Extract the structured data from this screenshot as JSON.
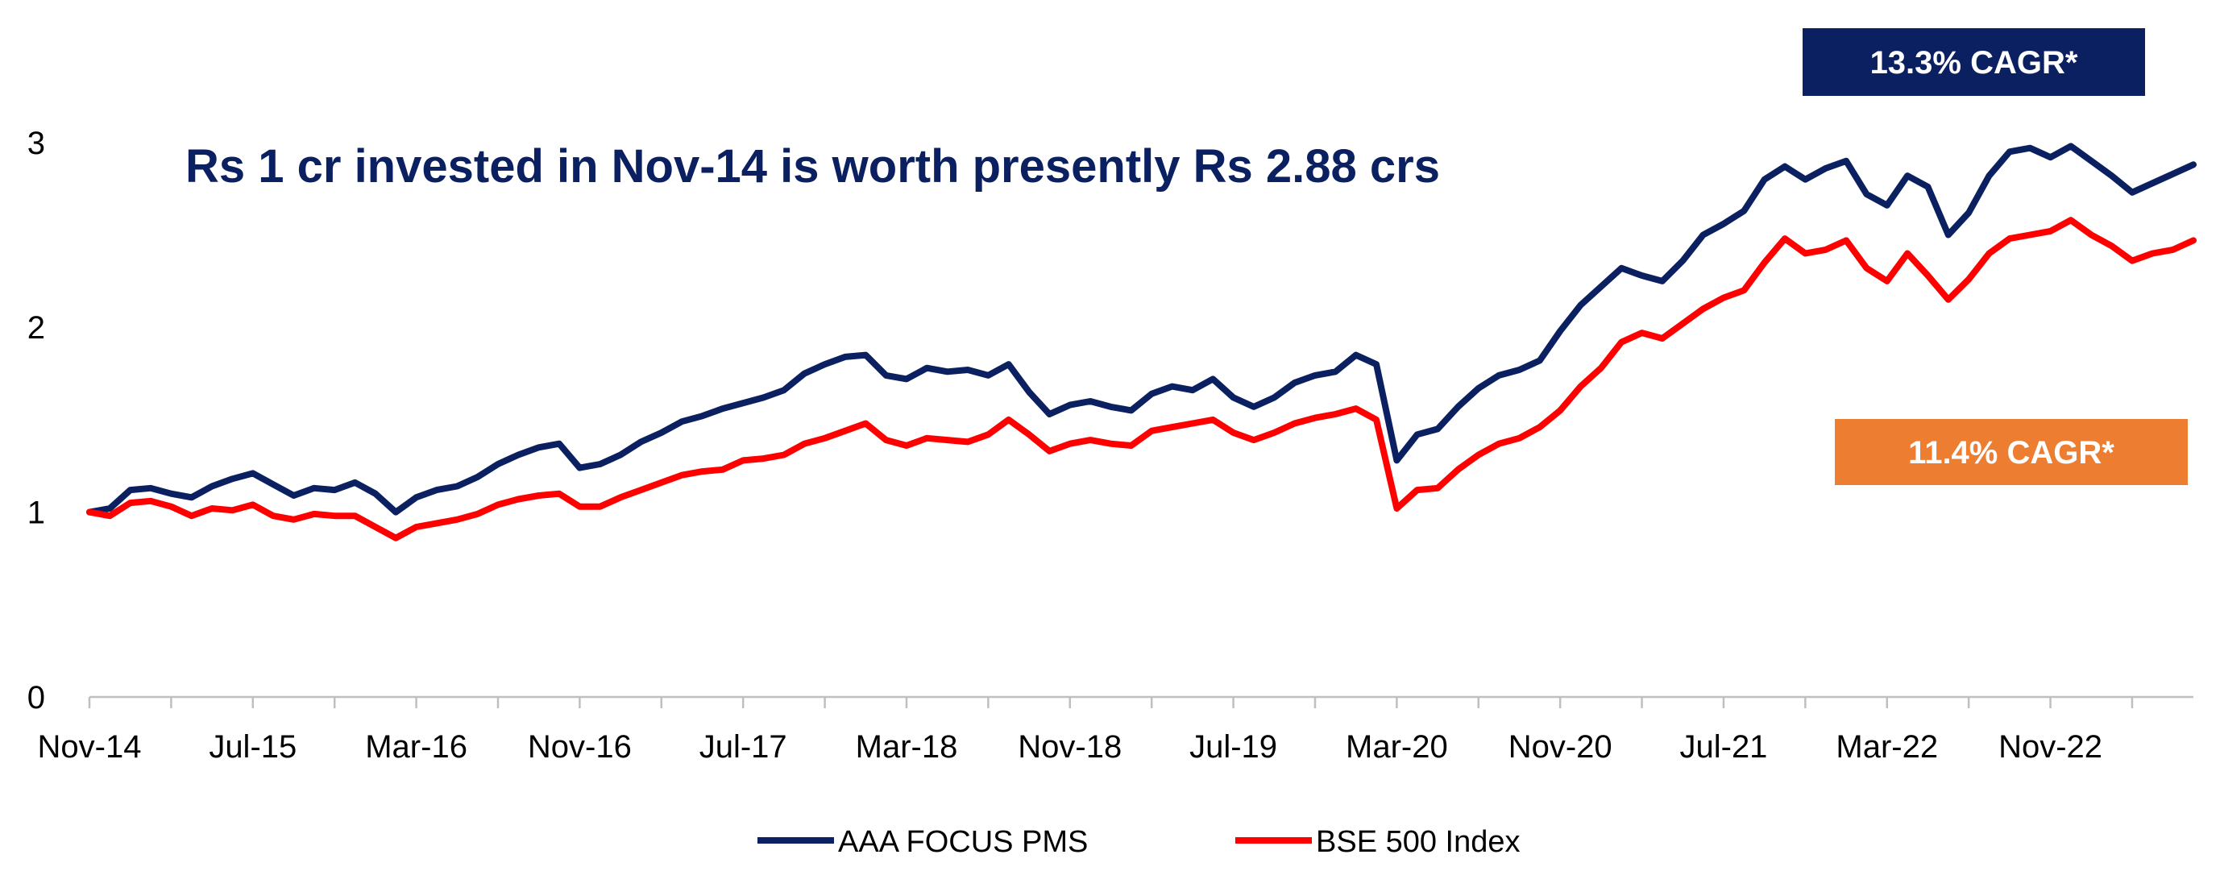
{
  "chart_data": {
    "type": "line",
    "title": "",
    "xlabel": "",
    "ylabel": "",
    "annotation": "Rs 1 cr invested in Nov-14 is worth presently Rs 2.88 crs",
    "x_tick_labels": [
      "Nov-14",
      "Jul-15",
      "Mar-16",
      "Nov-16",
      "Jul-17",
      "Mar-18",
      "Nov-18",
      "Jul-19",
      "Mar-20",
      "Nov-20",
      "Jul-21",
      "Mar-22",
      "Nov-22"
    ],
    "x_range": [
      "Nov-14",
      "Jun-23"
    ],
    "y_ticks": [
      0,
      1,
      2,
      3
    ],
    "ylim": [
      0,
      3.3
    ],
    "grid": false,
    "legend_position": "bottom",
    "badges": [
      {
        "text": "13.3% CAGR*",
        "series": "AAA FOCUS PMS",
        "color": "#0b2060"
      },
      {
        "text": "11.4% CAGR*",
        "series": "BSE 500 Index",
        "color": "#ed7d31"
      }
    ],
    "series": [
      {
        "name": "AAA FOCUS PMS",
        "color": "#0b2060",
        "points": [
          [
            "Nov-14",
            1.0
          ],
          [
            "Dec-14",
            1.02
          ],
          [
            "Jan-15",
            1.12
          ],
          [
            "Feb-15",
            1.13
          ],
          [
            "Mar-15",
            1.1
          ],
          [
            "Apr-15",
            1.08
          ],
          [
            "May-15",
            1.14
          ],
          [
            "Jun-15",
            1.18
          ],
          [
            "Jul-15",
            1.21
          ],
          [
            "Aug-15",
            1.15
          ],
          [
            "Sep-15",
            1.09
          ],
          [
            "Oct-15",
            1.13
          ],
          [
            "Nov-15",
            1.12
          ],
          [
            "Dec-15",
            1.16
          ],
          [
            "Jan-16",
            1.1
          ],
          [
            "Feb-16",
            1.0
          ],
          [
            "Mar-16",
            1.08
          ],
          [
            "Apr-16",
            1.12
          ],
          [
            "May-16",
            1.14
          ],
          [
            "Jun-16",
            1.19
          ],
          [
            "Jul-16",
            1.26
          ],
          [
            "Aug-16",
            1.31
          ],
          [
            "Sep-16",
            1.35
          ],
          [
            "Oct-16",
            1.37
          ],
          [
            "Nov-16",
            1.24
          ],
          [
            "Dec-16",
            1.26
          ],
          [
            "Jan-17",
            1.31
          ],
          [
            "Feb-17",
            1.38
          ],
          [
            "Mar-17",
            1.43
          ],
          [
            "Apr-17",
            1.49
          ],
          [
            "May-17",
            1.52
          ],
          [
            "Jun-17",
            1.56
          ],
          [
            "Jul-17",
            1.59
          ],
          [
            "Aug-17",
            1.62
          ],
          [
            "Sep-17",
            1.66
          ],
          [
            "Oct-17",
            1.75
          ],
          [
            "Nov-17",
            1.8
          ],
          [
            "Dec-17",
            1.84
          ],
          [
            "Jan-18",
            1.85
          ],
          [
            "Feb-18",
            1.74
          ],
          [
            "Mar-18",
            1.72
          ],
          [
            "Apr-18",
            1.78
          ],
          [
            "May-18",
            1.76
          ],
          [
            "Jun-18",
            1.77
          ],
          [
            "Jul-18",
            1.74
          ],
          [
            "Aug-18",
            1.8
          ],
          [
            "Sep-18",
            1.65
          ],
          [
            "Oct-18",
            1.53
          ],
          [
            "Nov-18",
            1.58
          ],
          [
            "Dec-18",
            1.6
          ],
          [
            "Jan-19",
            1.57
          ],
          [
            "Feb-19",
            1.55
          ],
          [
            "Mar-19",
            1.64
          ],
          [
            "Apr-19",
            1.68
          ],
          [
            "May-19",
            1.66
          ],
          [
            "Jun-19",
            1.72
          ],
          [
            "Jul-19",
            1.62
          ],
          [
            "Aug-19",
            1.57
          ],
          [
            "Sep-19",
            1.62
          ],
          [
            "Oct-19",
            1.7
          ],
          [
            "Nov-19",
            1.74
          ],
          [
            "Dec-19",
            1.76
          ],
          [
            "Jan-20",
            1.85
          ],
          [
            "Feb-20",
            1.8
          ],
          [
            "Mar-20",
            1.28
          ],
          [
            "Apr-20",
            1.42
          ],
          [
            "May-20",
            1.45
          ],
          [
            "Jun-20",
            1.57
          ],
          [
            "Jul-20",
            1.67
          ],
          [
            "Aug-20",
            1.74
          ],
          [
            "Sep-20",
            1.77
          ],
          [
            "Oct-20",
            1.82
          ],
          [
            "Nov-20",
            1.98
          ],
          [
            "Dec-20",
            2.12
          ],
          [
            "Jan-21",
            2.22
          ],
          [
            "Feb-21",
            2.32
          ],
          [
            "Mar-21",
            2.28
          ],
          [
            "Apr-21",
            2.25
          ],
          [
            "May-21",
            2.36
          ],
          [
            "Jun-21",
            2.5
          ],
          [
            "Jul-21",
            2.56
          ],
          [
            "Aug-21",
            2.63
          ],
          [
            "Sep-21",
            2.8
          ],
          [
            "Oct-21",
            2.87
          ],
          [
            "Nov-21",
            2.8
          ],
          [
            "Dec-21",
            2.86
          ],
          [
            "Jan-22",
            2.9
          ],
          [
            "Feb-22",
            2.72
          ],
          [
            "Mar-22",
            2.66
          ],
          [
            "Apr-22",
            2.82
          ],
          [
            "May-22",
            2.76
          ],
          [
            "Jun-22",
            2.5
          ],
          [
            "Jul-22",
            2.62
          ],
          [
            "Aug-22",
            2.82
          ],
          [
            "Sep-22",
            2.95
          ],
          [
            "Oct-22",
            2.97
          ],
          [
            "Nov-22",
            2.92
          ],
          [
            "Dec-22",
            2.98
          ],
          [
            "Jan-23",
            2.9
          ],
          [
            "Feb-23",
            2.82
          ],
          [
            "Mar-23",
            2.73
          ],
          [
            "Apr-23",
            2.78
          ],
          [
            "May-23",
            2.83
          ],
          [
            "Jun-23",
            2.88
          ]
        ]
      },
      {
        "name": "BSE 500 Index",
        "color": "#ff0000",
        "points": [
          [
            "Nov-14",
            1.0
          ],
          [
            "Dec-14",
            0.98
          ],
          [
            "Jan-15",
            1.05
          ],
          [
            "Feb-15",
            1.06
          ],
          [
            "Mar-15",
            1.03
          ],
          [
            "Apr-15",
            0.98
          ],
          [
            "May-15",
            1.02
          ],
          [
            "Jun-15",
            1.01
          ],
          [
            "Jul-15",
            1.04
          ],
          [
            "Aug-15",
            0.98
          ],
          [
            "Sep-15",
            0.96
          ],
          [
            "Oct-15",
            0.99
          ],
          [
            "Nov-15",
            0.98
          ],
          [
            "Dec-15",
            0.98
          ],
          [
            "Jan-16",
            0.92
          ],
          [
            "Feb-16",
            0.86
          ],
          [
            "Mar-16",
            0.92
          ],
          [
            "Apr-16",
            0.94
          ],
          [
            "May-16",
            0.96
          ],
          [
            "Jun-16",
            0.99
          ],
          [
            "Jul-16",
            1.04
          ],
          [
            "Aug-16",
            1.07
          ],
          [
            "Sep-16",
            1.09
          ],
          [
            "Oct-16",
            1.1
          ],
          [
            "Nov-16",
            1.03
          ],
          [
            "Dec-16",
            1.03
          ],
          [
            "Jan-17",
            1.08
          ],
          [
            "Feb-17",
            1.12
          ],
          [
            "Mar-17",
            1.16
          ],
          [
            "Apr-17",
            1.2
          ],
          [
            "May-17",
            1.22
          ],
          [
            "Jun-17",
            1.23
          ],
          [
            "Jul-17",
            1.28
          ],
          [
            "Aug-17",
            1.29
          ],
          [
            "Sep-17",
            1.31
          ],
          [
            "Oct-17",
            1.37
          ],
          [
            "Nov-17",
            1.4
          ],
          [
            "Dec-17",
            1.44
          ],
          [
            "Jan-18",
            1.48
          ],
          [
            "Feb-18",
            1.39
          ],
          [
            "Mar-18",
            1.36
          ],
          [
            "Apr-18",
            1.4
          ],
          [
            "May-18",
            1.39
          ],
          [
            "Jun-18",
            1.38
          ],
          [
            "Jul-18",
            1.42
          ],
          [
            "Aug-18",
            1.5
          ],
          [
            "Sep-18",
            1.42
          ],
          [
            "Oct-18",
            1.33
          ],
          [
            "Nov-18",
            1.37
          ],
          [
            "Dec-18",
            1.39
          ],
          [
            "Jan-19",
            1.37
          ],
          [
            "Feb-19",
            1.36
          ],
          [
            "Mar-19",
            1.44
          ],
          [
            "Apr-19",
            1.46
          ],
          [
            "May-19",
            1.48
          ],
          [
            "Jun-19",
            1.5
          ],
          [
            "Jul-19",
            1.43
          ],
          [
            "Aug-19",
            1.39
          ],
          [
            "Sep-19",
            1.43
          ],
          [
            "Oct-19",
            1.48
          ],
          [
            "Nov-19",
            1.51
          ],
          [
            "Dec-19",
            1.53
          ],
          [
            "Jan-20",
            1.56
          ],
          [
            "Feb-20",
            1.5
          ],
          [
            "Mar-20",
            1.02
          ],
          [
            "Apr-20",
            1.12
          ],
          [
            "May-20",
            1.13
          ],
          [
            "Jun-20",
            1.23
          ],
          [
            "Jul-20",
            1.31
          ],
          [
            "Aug-20",
            1.37
          ],
          [
            "Sep-20",
            1.4
          ],
          [
            "Oct-20",
            1.46
          ],
          [
            "Nov-20",
            1.55
          ],
          [
            "Dec-20",
            1.68
          ],
          [
            "Jan-21",
            1.78
          ],
          [
            "Feb-21",
            1.92
          ],
          [
            "Mar-21",
            1.97
          ],
          [
            "Apr-21",
            1.94
          ],
          [
            "May-21",
            2.02
          ],
          [
            "Jun-21",
            2.1
          ],
          [
            "Jul-21",
            2.16
          ],
          [
            "Aug-21",
            2.2
          ],
          [
            "Sep-21",
            2.35
          ],
          [
            "Oct-21",
            2.48
          ],
          [
            "Nov-21",
            2.4
          ],
          [
            "Dec-21",
            2.42
          ],
          [
            "Jan-22",
            2.47
          ],
          [
            "Feb-22",
            2.32
          ],
          [
            "Mar-22",
            2.25
          ],
          [
            "Apr-22",
            2.4
          ],
          [
            "May-22",
            2.28
          ],
          [
            "Jun-22",
            2.15
          ],
          [
            "Jul-22",
            2.26
          ],
          [
            "Aug-22",
            2.4
          ],
          [
            "Sep-22",
            2.48
          ],
          [
            "Oct-22",
            2.5
          ],
          [
            "Nov-22",
            2.52
          ],
          [
            "Dec-22",
            2.58
          ],
          [
            "Jan-23",
            2.5
          ],
          [
            "Feb-23",
            2.44
          ],
          [
            "Mar-23",
            2.36
          ],
          [
            "Apr-23",
            2.4
          ],
          [
            "May-23",
            2.42
          ],
          [
            "Jun-23",
            2.47
          ]
        ]
      }
    ]
  }
}
